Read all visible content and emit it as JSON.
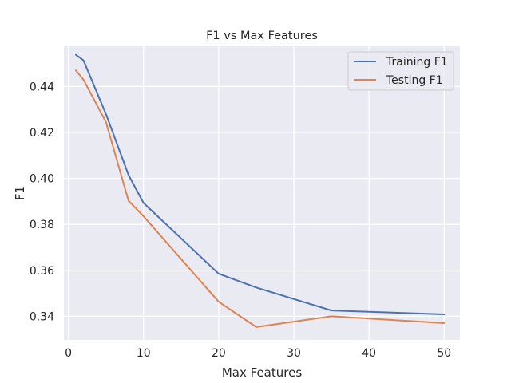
{
  "chart_data": {
    "type": "line",
    "title": "F1 vs Max Features",
    "xlabel": "Max Features",
    "ylabel": "F1",
    "xlim": [
      -0.6,
      52.1
    ],
    "ylim": [
      0.3297,
      0.4575
    ],
    "x_ticks": [
      0,
      10,
      20,
      30,
      40,
      50
    ],
    "y_ticks": [
      0.34,
      0.36,
      0.38,
      0.4,
      0.42,
      0.44
    ],
    "y_tick_labels": [
      "0.34",
      "0.36",
      "0.38",
      "0.40",
      "0.42",
      "0.44"
    ],
    "grid": true,
    "legend_position": "top-right",
    "series": [
      {
        "name": "Training F1",
        "color": "#4c72b0",
        "x": [
          1,
          2,
          5,
          8,
          10,
          20,
          25,
          35,
          50
        ],
        "y": [
          0.4538,
          0.4514,
          0.428,
          0.4015,
          0.3893,
          0.3585,
          0.3525,
          0.3425,
          0.3408
        ]
      },
      {
        "name": "Testing F1",
        "color": "#dd8452",
        "x": [
          1,
          2,
          5,
          8,
          10,
          20,
          25,
          35,
          50
        ],
        "y": [
          0.447,
          0.443,
          0.4245,
          0.3903,
          0.3835,
          0.3463,
          0.3353,
          0.34,
          0.337
        ]
      }
    ]
  }
}
